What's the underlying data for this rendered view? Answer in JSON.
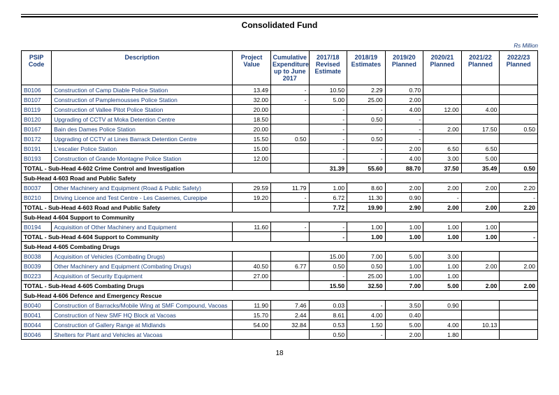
{
  "title": "Consolidated Fund",
  "unit_label": "Rs Million",
  "page_number": "18",
  "headers": {
    "code": "PSIP Code",
    "desc": "Description",
    "pv": "Project Value",
    "cum": "Cumulative Expenditure up to June 2017",
    "c1718": "2017/18 Revised Estimate",
    "c1819": "2018/19 Estimates",
    "c1920": "2019/20 Planned",
    "c2021": "2020/21 Planned",
    "c2122": "2021/22 Planned",
    "c2223": "2022/23 Planned"
  },
  "rows": [
    {
      "type": "data",
      "code": "B0106",
      "desc": "Construction of Camp Diable Police Station",
      "v": [
        "13.49",
        "-",
        "10.50",
        "2.29",
        "0.70",
        "",
        "",
        ""
      ]
    },
    {
      "type": "data",
      "code": "B0107",
      "desc": "Construction of Pamplemousses Police Station",
      "v": [
        "32.00",
        "-",
        "5.00",
        "25.00",
        "2.00",
        "",
        "",
        ""
      ]
    },
    {
      "type": "data",
      "code": "B0119",
      "desc": "Construction of Vallee Pitot Police Station",
      "v": [
        "20.00",
        "",
        "-",
        "-",
        "4.00",
        "12.00",
        "4.00",
        ""
      ]
    },
    {
      "type": "data",
      "code": "B0120",
      "desc": "Upgrading of CCTV at Moka Detention Centre",
      "v": [
        "18.50",
        "",
        "-",
        "0.50",
        "-",
        "",
        "",
        ""
      ]
    },
    {
      "type": "data",
      "code": "B0167",
      "desc": "Bain des Dames Police Station",
      "v": [
        "20.00",
        "",
        "-",
        "-",
        "-",
        "2.00",
        "17.50",
        "0.50"
      ]
    },
    {
      "type": "data",
      "code": "B0172",
      "desc": "Upgrading of CCTV at Lines Barrack Detention Centre",
      "v": [
        "15.50",
        "0.50",
        "-",
        "0.50",
        "-",
        "",
        "",
        ""
      ]
    },
    {
      "type": "data",
      "code": "B0191",
      "desc": "L'escalier Police Station",
      "v": [
        "15.00",
        "",
        "-",
        "-",
        "2.00",
        "6.50",
        "6.50",
        ""
      ]
    },
    {
      "type": "data",
      "code": "B0193",
      "desc": "Construction of Grande Montagne Police Station",
      "v": [
        "12.00",
        "",
        "-",
        "-",
        "4.00",
        "3.00",
        "5.00",
        ""
      ]
    },
    {
      "type": "total",
      "label": "TOTAL - Sub-Head 4-602 Crime Control and Investigation",
      "v": [
        "",
        "",
        "31.39",
        "55.60",
        "88.70",
        "37.50",
        "35.49",
        "0.50"
      ]
    },
    {
      "type": "subhead",
      "label": "Sub-Head 4-603 Road and Public Safety"
    },
    {
      "type": "data",
      "code": "B0037",
      "desc": "Other Machinery and Equipment (Road & Public Safety)",
      "v": [
        "29.59",
        "11.79",
        "1.00",
        "8.60",
        "2.00",
        "2.00",
        "2.00",
        "2.20"
      ]
    },
    {
      "type": "data",
      "code": "B0210",
      "desc": "Driving Licence and Test Centre - Les Casernes, Curepipe",
      "v": [
        "19.20",
        "-",
        "6.72",
        "11.30",
        "0.90",
        "-",
        "",
        "-"
      ]
    },
    {
      "type": "total",
      "label": "TOTAL - Sub-Head 4-603 Road and Public Safety",
      "v": [
        "",
        "",
        "7.72",
        "19.90",
        "2.90",
        "2.00",
        "2.00",
        "2.20"
      ]
    },
    {
      "type": "subhead",
      "label": "Sub-Head 4-604 Support to Community"
    },
    {
      "type": "data",
      "code": "B0194",
      "desc": "Acquisition of Other Machinery and Equipment",
      "v": [
        "11.60",
        "-",
        "-",
        "1.00",
        "1.00",
        "1.00",
        "1.00",
        ""
      ]
    },
    {
      "type": "total",
      "label": "TOTAL - Sub-Head 4-604 Support to Community",
      "v": [
        "",
        "",
        "-",
        "1.00",
        "1.00",
        "1.00",
        "1.00",
        "-"
      ]
    },
    {
      "type": "subhead",
      "label": "Sub-Head 4-605 Combating Drugs"
    },
    {
      "type": "data",
      "code": "B0038",
      "desc": "Acquisition of Vehicles (Combating Drugs)",
      "v": [
        "",
        "",
        "15.00",
        "7.00",
        "5.00",
        "3.00",
        "",
        ""
      ]
    },
    {
      "type": "data",
      "code": "B0039",
      "desc": "Other Machinery and Equipment (Combating Drugs)",
      "v": [
        "40.50",
        "6.77",
        "0.50",
        "0.50",
        "1.00",
        "1.00",
        "2.00",
        "2.00"
      ]
    },
    {
      "type": "data",
      "code": "B0223",
      "desc": "Acquisition of Security Equipment",
      "v": [
        "27.00",
        "",
        "-",
        "25.00",
        "1.00",
        "1.00",
        "",
        ""
      ]
    },
    {
      "type": "total",
      "label": "TOTAL - Sub-Head 4-605 Combating Drugs",
      "v": [
        "",
        "",
        "15.50",
        "32.50",
        "7.00",
        "5.00",
        "2.00",
        "2.00"
      ]
    },
    {
      "type": "subhead",
      "label": "Sub-Head 4-606 Defence and Emergency Rescue"
    },
    {
      "type": "data",
      "code": "B0040",
      "desc": "Construction of Barracks/Mobile Wing at SMF Compound, Vacoas",
      "justify": true,
      "v": [
        "11.90",
        "7.46",
        "0.03",
        "-",
        "3.50",
        "0.90",
        "",
        ""
      ]
    },
    {
      "type": "data",
      "code": "B0041",
      "desc": "Construction of New SMF HQ Block at Vacoas",
      "v": [
        "15.70",
        "2.44",
        "8.61",
        "4.00",
        "0.40",
        "",
        "",
        ""
      ]
    },
    {
      "type": "data",
      "code": "B0044",
      "desc": "Construction of Gallery Range at Midlands",
      "v": [
        "54.00",
        "32.84",
        "0.53",
        "1.50",
        "5.00",
        "4.00",
        "10.13",
        ""
      ]
    },
    {
      "type": "data",
      "code": "B0046",
      "desc": "Shelters for Plant and Vehicles at Vacoas",
      "v": [
        "",
        "",
        "0.50",
        "-",
        "2.00",
        "1.80",
        "",
        ""
      ]
    }
  ]
}
